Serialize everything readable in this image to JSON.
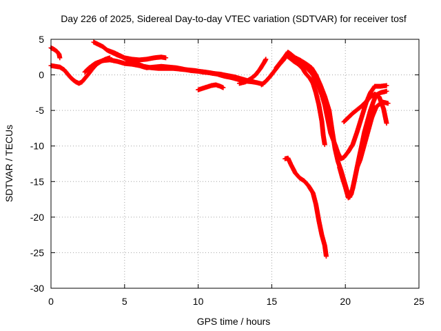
{
  "chart_data": {
    "type": "scatter",
    "title": "Day 226 of 2025, Sidereal Day-to-day VTEC variation (SDTVAR) for receiver tosf",
    "xlabel": "GPS time / hours",
    "ylabel": "SDTVAR / TECUs",
    "xlim": [
      0,
      25
    ],
    "ylim": [
      -30,
      5
    ],
    "xticks": [
      0,
      5,
      10,
      15,
      20,
      25
    ],
    "yticks": [
      5,
      0,
      -5,
      -10,
      -15,
      -20,
      -25,
      -30
    ],
    "grid": true,
    "marker": "+",
    "series_color": "#ff0000",
    "series": [
      {
        "name": "track-1",
        "points": [
          [
            0.0,
            3.8
          ],
          [
            0.2,
            3.6
          ],
          [
            0.4,
            3.3
          ],
          [
            0.55,
            2.9
          ],
          [
            0.6,
            2.4
          ]
        ]
      },
      {
        "name": "track-2",
        "points": [
          [
            0.0,
            1.3
          ],
          [
            0.3,
            1.2
          ],
          [
            0.6,
            1.1
          ],
          [
            0.9,
            0.7
          ],
          [
            1.1,
            0.2
          ],
          [
            1.3,
            -0.3
          ],
          [
            1.5,
            -0.7
          ],
          [
            1.7,
            -1.0
          ],
          [
            1.9,
            -1.2
          ],
          [
            2.1,
            -1.0
          ],
          [
            2.3,
            -0.5
          ],
          [
            2.5,
            0.0
          ],
          [
            2.8,
            0.8
          ],
          [
            3.1,
            1.5
          ],
          [
            3.4,
            1.9
          ],
          [
            3.7,
            2.2
          ],
          [
            4.0,
            2.4
          ]
        ]
      },
      {
        "name": "track-3",
        "points": [
          [
            2.9,
            4.6
          ],
          [
            3.2,
            4.3
          ],
          [
            3.5,
            4.0
          ],
          [
            3.8,
            3.5
          ],
          [
            4.1,
            3.2
          ],
          [
            4.5,
            2.8
          ],
          [
            5.0,
            2.4
          ],
          [
            5.5,
            2.2
          ],
          [
            6.0,
            2.1
          ],
          [
            6.5,
            2.2
          ],
          [
            7.0,
            2.4
          ],
          [
            7.5,
            2.5
          ],
          [
            7.8,
            2.4
          ]
        ]
      },
      {
        "name": "track-4",
        "points": [
          [
            2.3,
            0.4
          ],
          [
            2.6,
            1.0
          ],
          [
            3.0,
            1.6
          ],
          [
            3.5,
            2.0
          ],
          [
            4.0,
            2.1
          ],
          [
            4.5,
            1.9
          ],
          [
            5.0,
            1.6
          ],
          [
            5.5,
            1.5
          ],
          [
            6.0,
            1.3
          ],
          [
            6.5,
            1.0
          ],
          [
            7.0,
            1.1
          ],
          [
            7.5,
            1.2
          ],
          [
            8.0,
            1.1
          ],
          [
            8.5,
            1.0
          ],
          [
            9.0,
            0.8
          ],
          [
            9.5,
            0.6
          ],
          [
            10.0,
            0.5
          ],
          [
            10.5,
            0.4
          ],
          [
            11.0,
            0.2
          ],
          [
            11.5,
            0.1
          ],
          [
            12.0,
            -0.1
          ],
          [
            12.5,
            -0.3
          ],
          [
            13.0,
            -0.6
          ],
          [
            13.5,
            -0.9
          ],
          [
            14.0,
            -1.1
          ],
          [
            14.4,
            -1.3
          ]
        ]
      },
      {
        "name": "track-5",
        "points": [
          [
            3.9,
            3.4
          ],
          [
            4.3,
            3.1
          ],
          [
            4.8,
            2.6
          ],
          [
            5.3,
            2.0
          ],
          [
            5.8,
            1.6
          ],
          [
            6.3,
            1.2
          ],
          [
            6.8,
            1.0
          ],
          [
            7.3,
            0.9
          ],
          [
            7.8,
            0.9
          ],
          [
            8.3,
            0.9
          ],
          [
            8.8,
            0.8
          ],
          [
            9.3,
            0.7
          ],
          [
            9.8,
            0.6
          ],
          [
            10.3,
            0.4
          ],
          [
            10.8,
            0.3
          ],
          [
            11.3,
            0.1
          ],
          [
            11.8,
            -0.2
          ],
          [
            12.3,
            -0.4
          ],
          [
            12.8,
            -0.7
          ],
          [
            13.3,
            -0.9
          ],
          [
            13.8,
            -1.0
          ]
        ]
      },
      {
        "name": "track-6",
        "points": [
          [
            10.0,
            -2.1
          ],
          [
            10.3,
            -1.9
          ],
          [
            10.6,
            -1.7
          ],
          [
            10.9,
            -1.5
          ],
          [
            11.2,
            -1.4
          ],
          [
            11.5,
            -1.6
          ],
          [
            11.7,
            -1.8
          ]
        ]
      },
      {
        "name": "track-7",
        "points": [
          [
            12.8,
            -1.2
          ],
          [
            13.2,
            -1.0
          ],
          [
            13.6,
            -0.5
          ],
          [
            13.9,
            0.0
          ],
          [
            14.2,
            0.8
          ],
          [
            14.5,
            1.8
          ],
          [
            14.6,
            2.2
          ]
        ]
      },
      {
        "name": "track-8",
        "points": [
          [
            14.3,
            -1.4
          ],
          [
            14.6,
            -0.9
          ],
          [
            14.9,
            -0.2
          ],
          [
            15.2,
            0.6
          ],
          [
            15.5,
            1.4
          ],
          [
            15.8,
            2.1
          ],
          [
            16.0,
            2.7
          ],
          [
            16.2,
            2.4
          ],
          [
            16.5,
            1.9
          ],
          [
            16.8,
            1.5
          ],
          [
            17.1,
            0.9
          ],
          [
            17.3,
            0.2
          ],
          [
            17.6,
            -0.5
          ],
          [
            17.8,
            -1.2
          ],
          [
            18.0,
            -2.5
          ],
          [
            18.2,
            -4.2
          ],
          [
            18.4,
            -6.5
          ],
          [
            18.5,
            -8.5
          ],
          [
            18.6,
            -9.8
          ]
        ]
      },
      {
        "name": "track-9",
        "points": [
          [
            15.3,
            1.0
          ],
          [
            15.6,
            1.8
          ],
          [
            15.9,
            2.6
          ],
          [
            16.1,
            3.2
          ],
          [
            16.3,
            2.9
          ],
          [
            16.6,
            2.4
          ],
          [
            16.9,
            1.9
          ],
          [
            17.2,
            1.4
          ],
          [
            17.5,
            0.7
          ],
          [
            17.8,
            0.0
          ],
          [
            18.1,
            -1.2
          ],
          [
            18.4,
            -2.8
          ],
          [
            18.6,
            -4.2
          ],
          [
            18.8,
            -6.2
          ],
          [
            19.0,
            -8.2
          ],
          [
            19.3,
            -9.8
          ],
          [
            19.5,
            -11.0
          ],
          [
            19.7,
            -11.8
          ],
          [
            19.9,
            -11.6
          ],
          [
            20.2,
            -10.8
          ],
          [
            20.5,
            -9.8
          ],
          [
            20.8,
            -8.0
          ],
          [
            21.1,
            -6.0
          ],
          [
            21.4,
            -4.0
          ],
          [
            21.7,
            -2.5
          ],
          [
            22.0,
            -1.6
          ],
          [
            22.4,
            -1.6
          ],
          [
            22.8,
            -1.5
          ]
        ]
      },
      {
        "name": "track-10",
        "points": [
          [
            16.5,
            2.5
          ],
          [
            16.9,
            2.1
          ],
          [
            17.3,
            1.6
          ],
          [
            17.7,
            1.0
          ],
          [
            18.0,
            0.0
          ],
          [
            18.3,
            -1.4
          ],
          [
            18.6,
            -3.0
          ],
          [
            18.9,
            -5.0
          ],
          [
            19.1,
            -7.8
          ],
          [
            19.3,
            -10.4
          ],
          [
            19.5,
            -12.2
          ],
          [
            19.7,
            -13.4
          ],
          [
            19.9,
            -14.8
          ],
          [
            20.1,
            -16.2
          ],
          [
            20.3,
            -17.2
          ],
          [
            20.5,
            -16.0
          ],
          [
            20.7,
            -14.0
          ],
          [
            20.9,
            -12.0
          ],
          [
            21.1,
            -10.0
          ],
          [
            21.3,
            -8.0
          ],
          [
            21.5,
            -6.5
          ],
          [
            21.7,
            -5.0
          ],
          [
            21.9,
            -3.8
          ],
          [
            22.1,
            -2.8
          ],
          [
            22.4,
            -2.5
          ],
          [
            22.8,
            -2.3
          ]
        ]
      },
      {
        "name": "track-11",
        "points": [
          [
            19.6,
            -13.0
          ],
          [
            19.8,
            -14.5
          ],
          [
            20.0,
            -15.8
          ],
          [
            20.2,
            -17.3
          ],
          [
            20.4,
            -16.8
          ],
          [
            20.6,
            -15.0
          ],
          [
            20.8,
            -13.0
          ],
          [
            21.0,
            -11.0
          ],
          [
            21.2,
            -9.5
          ],
          [
            21.5,
            -7.5
          ],
          [
            21.8,
            -6.0
          ],
          [
            22.1,
            -4.5
          ],
          [
            22.5,
            -3.8
          ],
          [
            22.9,
            -4.0
          ]
        ]
      },
      {
        "name": "track-12",
        "points": [
          [
            19.9,
            -6.6
          ],
          [
            20.2,
            -6.0
          ],
          [
            20.5,
            -5.4
          ],
          [
            20.8,
            -4.9
          ],
          [
            21.1,
            -4.4
          ],
          [
            21.4,
            -3.8
          ],
          [
            21.7,
            -3.1
          ],
          [
            22.0,
            -2.7
          ],
          [
            22.3,
            -3.1
          ],
          [
            22.6,
            -4.8
          ],
          [
            22.8,
            -6.8
          ]
        ]
      },
      {
        "name": "track-13",
        "points": [
          [
            20.8,
            -13.0
          ],
          [
            21.0,
            -12.0
          ],
          [
            21.2,
            -10.5
          ],
          [
            21.4,
            -9.0
          ],
          [
            21.6,
            -7.5
          ],
          [
            21.8,
            -6.0
          ],
          [
            22.0,
            -4.6
          ]
        ]
      },
      {
        "name": "track-14",
        "points": [
          [
            15.9,
            -11.8
          ],
          [
            16.1,
            -11.7
          ],
          [
            16.3,
            -12.6
          ],
          [
            16.6,
            -13.8
          ],
          [
            16.9,
            -14.5
          ],
          [
            17.2,
            -14.9
          ],
          [
            17.5,
            -15.6
          ],
          [
            17.8,
            -16.6
          ],
          [
            18.0,
            -18.2
          ],
          [
            18.2,
            -20.5
          ],
          [
            18.4,
            -22.5
          ],
          [
            18.6,
            -24.0
          ],
          [
            18.7,
            -25.5
          ]
        ]
      }
    ]
  }
}
